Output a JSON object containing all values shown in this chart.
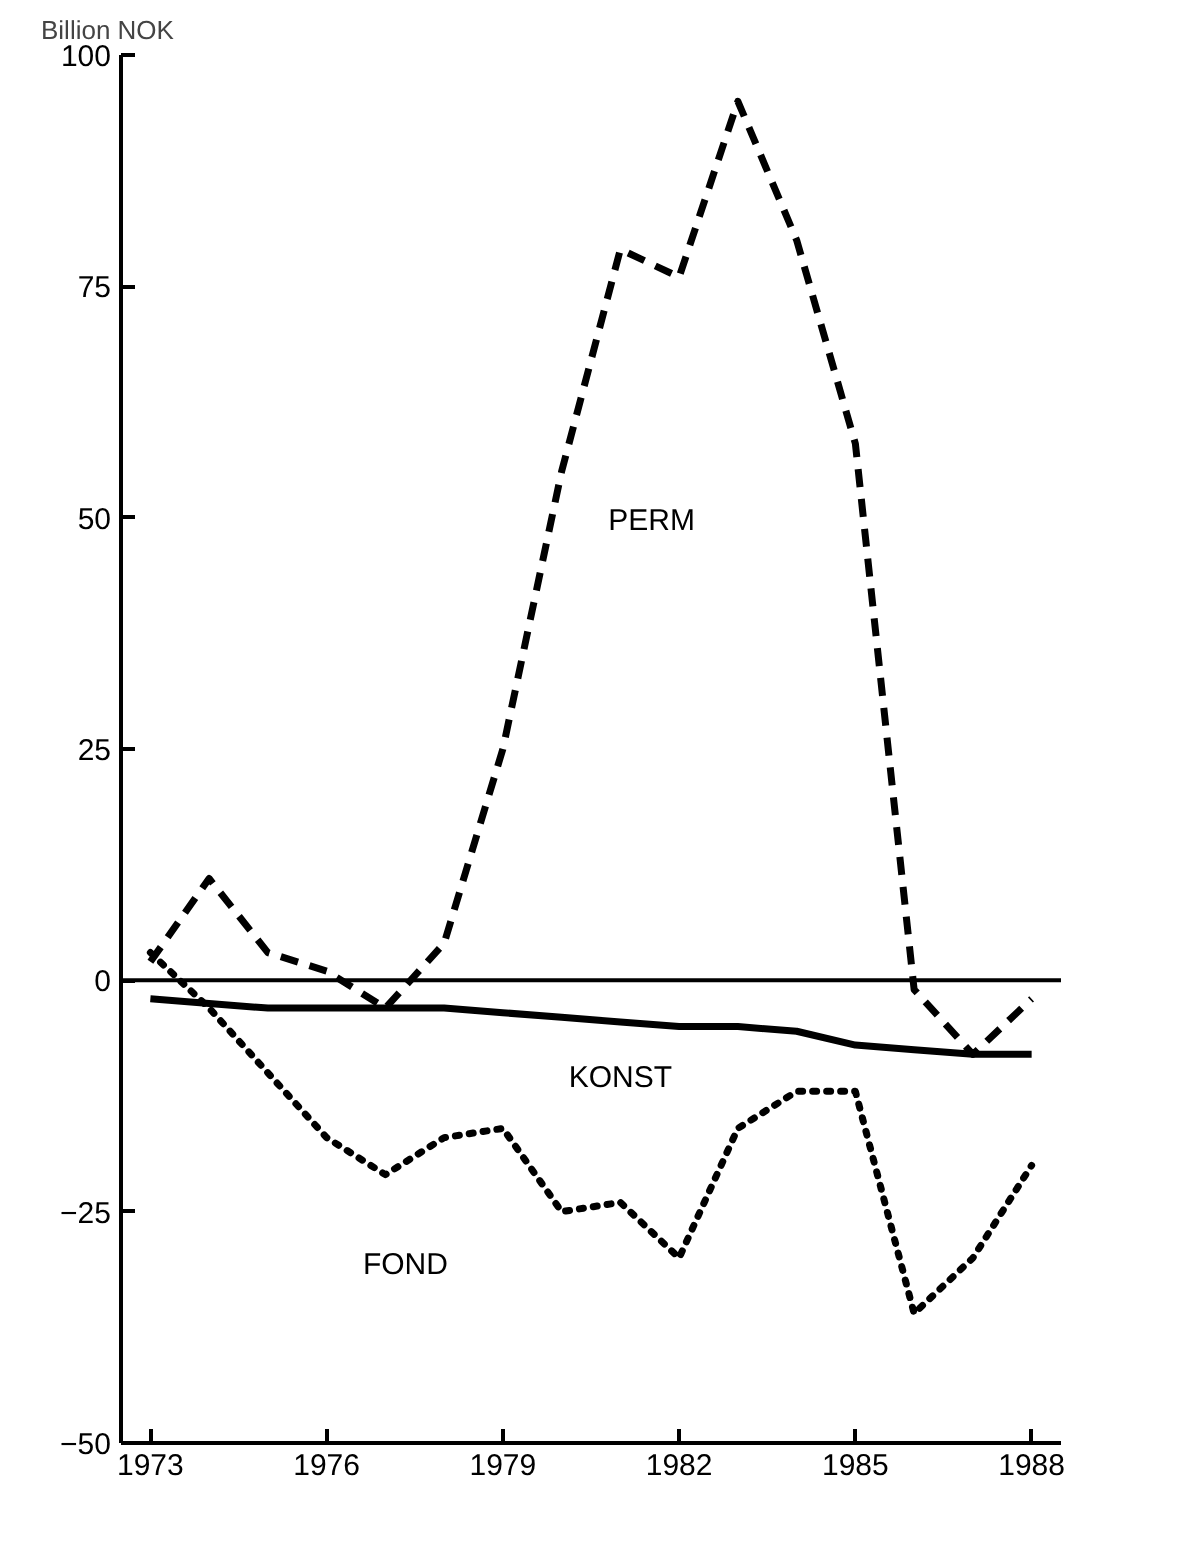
{
  "chart_data": {
    "type": "line",
    "ylabel": "Billion NOK",
    "x": [
      1973,
      1974,
      1975,
      1976,
      1977,
      1978,
      1979,
      1980,
      1981,
      1982,
      1983,
      1984,
      1985,
      1986,
      1987,
      1988
    ],
    "series": [
      {
        "name": "PERM",
        "color": "#000000",
        "line_style": "dashed",
        "values": [
          2,
          11,
          3,
          1,
          -3,
          4,
          25,
          55,
          79,
          76,
          95,
          80,
          58,
          -1,
          -8,
          -2
        ]
      },
      {
        "name": "KONST",
        "color": "#000000",
        "line_style": "solid",
        "values": [
          -2,
          -2.5,
          -3,
          -3,
          -3,
          -3,
          -3.5,
          -4,
          -4.5,
          -5,
          -5,
          -5.5,
          -7,
          -7.5,
          -8,
          -8
        ]
      },
      {
        "name": "FOND",
        "color": "#000000",
        "line_style": "dotted",
        "values": [
          3,
          -3,
          -10,
          -17,
          -21,
          -17,
          -16,
          -25,
          -24,
          -30,
          -16,
          -12,
          -12,
          -36,
          -30,
          -20
        ]
      }
    ],
    "ref_lines": [
      {
        "axis": "y",
        "value": 0
      }
    ],
    "xlim": [
      1972.5,
      1988.5
    ],
    "xticks": [
      1973,
      1976,
      1979,
      1982,
      1985,
      1988
    ],
    "ylim": [
      -50,
      100
    ],
    "yticks": [
      -50,
      -25,
      0,
      25,
      50,
      75,
      100
    ],
    "grid": false,
    "legend": false
  }
}
